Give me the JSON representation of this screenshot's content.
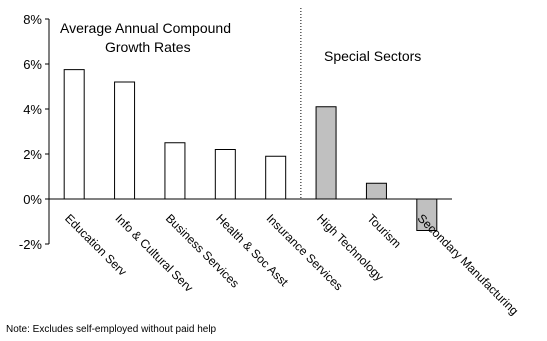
{
  "chart_data": {
    "type": "bar",
    "categories": [
      "Education Serv",
      "Info & Cultural Serv",
      "Business Services",
      "Health & Soc Asst",
      "Insurance Services",
      "High Technology",
      "Tourism",
      "Secondary Manufacturing"
    ],
    "values": [
      5.75,
      5.2,
      2.5,
      2.2,
      1.9,
      4.1,
      0.7,
      -1.4
    ],
    "groups": [
      "main",
      "main",
      "main",
      "main",
      "main",
      "special",
      "special",
      "special"
    ],
    "ylim": [
      -2,
      8
    ],
    "yticks": [
      -2,
      0,
      2,
      4,
      6,
      8
    ],
    "ytick_labels": [
      "-2%",
      "0%",
      "2%",
      "4%",
      "6%",
      "8%"
    ],
    "grid": false,
    "annotations": {
      "left_title_line1": "Average Annual Compound",
      "left_title_line2": "Growth Rates",
      "right_title": "Special Sectors"
    },
    "colors": {
      "main_fill": "#ffffff",
      "special_fill": "#c0c0c0",
      "stroke": "#000000"
    }
  },
  "note": "Note: Excludes self-employed without paid help"
}
